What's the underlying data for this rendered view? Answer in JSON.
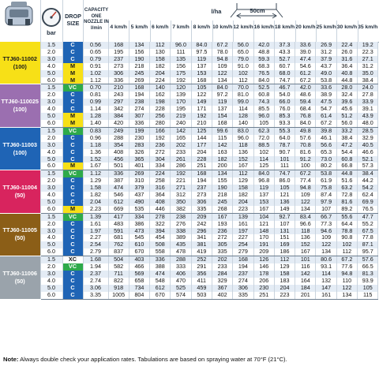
{
  "colors": {
    "VC": "#2eaa4a",
    "C": "#1f64b5",
    "M": "#f7e017",
    "XC": "#ffffff",
    "stripe": "#e4ecf5",
    "header_text": "#1f2d3d"
  },
  "header": {
    "icon_gauge": "pressure-gauge",
    "icon_sprayer": "sprayer-tractor",
    "icon_nozzle": "nozzle",
    "bar_label": "bar",
    "drop_size_label": "DROP SIZE",
    "capacity_label": "CAPACITY ONE NOZZLE IN l/min",
    "lha_label": "l/ha",
    "spacing_label": "50cm",
    "speeds": [
      "4 km/h",
      "5 km/h",
      "6 km/h",
      "7 km/h",
      "8 km/h",
      "10 km/h",
      "12 km/h",
      "16 km/h",
      "18 km/h",
      "20 km/h",
      "25 km/h",
      "30 km/h",
      "35 km/h"
    ]
  },
  "groups": [
    {
      "model": "TTJ60-11002 (100)",
      "color": "#f7e017",
      "text": "#1a1a1a",
      "rows": [
        {
          "bar": "1.5",
          "drop": "C",
          "cap": "0.56",
          "v": [
            "168",
            "134",
            "112",
            "96.0",
            "84.0",
            "67.2",
            "56.0",
            "42.0",
            "37.3",
            "33.6",
            "26.9",
            "22.4",
            "19.2"
          ]
        },
        {
          "bar": "2.0",
          "drop": "C",
          "cap": "0.65",
          "v": [
            "195",
            "156",
            "130",
            "111",
            "97.5",
            "78.0",
            "65.0",
            "48.8",
            "43.3",
            "39.0",
            "31.2",
            "26.0",
            "22.3"
          ]
        },
        {
          "bar": "3.0",
          "drop": "C",
          "cap": "0.79",
          "v": [
            "237",
            "190",
            "158",
            "135",
            "119",
            "94.8",
            "79.0",
            "59.3",
            "52.7",
            "47.4",
            "37.9",
            "31.6",
            "27.1"
          ]
        },
        {
          "bar": "4.0",
          "drop": "M",
          "cap": "0.91",
          "v": [
            "273",
            "218",
            "182",
            "156",
            "137",
            "109",
            "91.0",
            "68.3",
            "60.7",
            "54.6",
            "43.7",
            "36.4",
            "31.2"
          ]
        },
        {
          "bar": "5.0",
          "drop": "M",
          "cap": "1.02",
          "v": [
            "306",
            "245",
            "204",
            "175",
            "153",
            "122",
            "102",
            "76.5",
            "68.0",
            "61.2",
            "49.0",
            "40.8",
            "35.0"
          ]
        },
        {
          "bar": "6.0",
          "drop": "M",
          "cap": "1.12",
          "v": [
            "336",
            "269",
            "224",
            "192",
            "168",
            "134",
            "112",
            "84.0",
            "74.7",
            "67.2",
            "53.8",
            "44.8",
            "38.4"
          ]
        }
      ]
    },
    {
      "model": "TTJ60-110025 (100)",
      "color": "#9b6fb0",
      "text": "#ffffff",
      "rows": [
        {
          "bar": "1.5",
          "drop": "VC",
          "cap": "0.70",
          "v": [
            "210",
            "168",
            "140",
            "120",
            "105",
            "84.0",
            "70.0",
            "52.5",
            "46.7",
            "42.0",
            "33.6",
            "28.0",
            "24.0"
          ]
        },
        {
          "bar": "2.0",
          "drop": "C",
          "cap": "0.81",
          "v": [
            "243",
            "194",
            "162",
            "139",
            "122",
            "97.2",
            "81.0",
            "60.8",
            "54.0",
            "48.6",
            "38.9",
            "32.4",
            "27.8"
          ]
        },
        {
          "bar": "3.0",
          "drop": "C",
          "cap": "0.99",
          "v": [
            "297",
            "238",
            "198",
            "170",
            "149",
            "119",
            "99.0",
            "74.3",
            "66.0",
            "59.4",
            "47.5",
            "39.6",
            "33.9"
          ]
        },
        {
          "bar": "4.0",
          "drop": "C",
          "cap": "1.14",
          "v": [
            "342",
            "274",
            "228",
            "195",
            "171",
            "137",
            "114",
            "85.5",
            "76.0",
            "68.4",
            "54.7",
            "45.6",
            "39.1"
          ]
        },
        {
          "bar": "5.0",
          "drop": "M",
          "cap": "1.28",
          "v": [
            "384",
            "307",
            "256",
            "219",
            "192",
            "154",
            "128",
            "96.0",
            "85.3",
            "76.8",
            "61.4",
            "51.2",
            "43.9"
          ]
        },
        {
          "bar": "6.0",
          "drop": "M",
          "cap": "1.40",
          "v": [
            "420",
            "336",
            "280",
            "240",
            "210",
            "168",
            "140",
            "105",
            "93.3",
            "84.0",
            "67.2",
            "56.0",
            "48.0"
          ]
        }
      ]
    },
    {
      "model": "TTJ60-11003 (100)",
      "color": "#1f64b5",
      "text": "#ffffff",
      "rows": [
        {
          "bar": "1.5",
          "drop": "VC",
          "cap": "0.83",
          "v": [
            "249",
            "199",
            "166",
            "142",
            "125",
            "99.6",
            "83.0",
            "62.3",
            "55.3",
            "49.8",
            "39.8",
            "33.2",
            "28.5"
          ]
        },
        {
          "bar": "2.0",
          "drop": "C",
          "cap": "0.96",
          "v": [
            "288",
            "230",
            "192",
            "165",
            "144",
            "115",
            "96.0",
            "72.0",
            "64.0",
            "57.6",
            "46.1",
            "38.4",
            "32.9"
          ]
        },
        {
          "bar": "3.0",
          "drop": "C",
          "cap": "1.18",
          "v": [
            "354",
            "283",
            "236",
            "202",
            "177",
            "142",
            "118",
            "88.5",
            "78.7",
            "70.8",
            "56.6",
            "47.2",
            "40.5"
          ]
        },
        {
          "bar": "4.0",
          "drop": "C",
          "cap": "1.36",
          "v": [
            "408",
            "326",
            "272",
            "233",
            "204",
            "163",
            "136",
            "102",
            "90.7",
            "81.6",
            "65.3",
            "54.4",
            "46.6"
          ]
        },
        {
          "bar": "5.0",
          "drop": "C",
          "cap": "1.52",
          "v": [
            "456",
            "365",
            "304",
            "261",
            "228",
            "182",
            "152",
            "114",
            "101",
            "91.2",
            "73.0",
            "60.8",
            "52.1"
          ]
        },
        {
          "bar": "6.0",
          "drop": "M",
          "cap": "1.67",
          "v": [
            "501",
            "401",
            "334",
            "286",
            "251",
            "200",
            "167",
            "125",
            "111",
            "100",
            "80.2",
            "66.8",
            "57.3"
          ]
        }
      ]
    },
    {
      "model": "TTJ60-11004 (50)",
      "color": "#d8245e",
      "text": "#ffffff",
      "rows": [
        {
          "bar": "1.5",
          "drop": "VC",
          "cap": "1.12",
          "v": [
            "336",
            "269",
            "224",
            "192",
            "168",
            "134",
            "112",
            "84.0",
            "74.7",
            "67.2",
            "53.8",
            "44.8",
            "38.4"
          ]
        },
        {
          "bar": "2.0",
          "drop": "C",
          "cap": "1.29",
          "v": [
            "387",
            "310",
            "258",
            "221",
            "194",
            "155",
            "129",
            "96.8",
            "86.0",
            "77.4",
            "61.9",
            "51.6",
            "44.2"
          ]
        },
        {
          "bar": "3.0",
          "drop": "C",
          "cap": "1.58",
          "v": [
            "474",
            "379",
            "316",
            "271",
            "237",
            "190",
            "158",
            "119",
            "105",
            "94.8",
            "75.8",
            "63.2",
            "54.2"
          ]
        },
        {
          "bar": "4.0",
          "drop": "C",
          "cap": "1.82",
          "v": [
            "546",
            "437",
            "364",
            "312",
            "273",
            "218",
            "182",
            "137",
            "121",
            "109",
            "87.4",
            "72.8",
            "62.4"
          ]
        },
        {
          "bar": "5.0",
          "drop": "C",
          "cap": "2.04",
          "v": [
            "612",
            "490",
            "408",
            "350",
            "306",
            "245",
            "204",
            "153",
            "136",
            "122",
            "97.9",
            "81.6",
            "69.9"
          ]
        },
        {
          "bar": "6.0",
          "drop": "M",
          "cap": "2.23",
          "v": [
            "669",
            "535",
            "446",
            "382",
            "335",
            "268",
            "223",
            "167",
            "149",
            "134",
            "107",
            "89.2",
            "76.5"
          ]
        }
      ]
    },
    {
      "model": "TTJ60-11005 (50)",
      "color": "#8b5e17",
      "text": "#ffffff",
      "rows": [
        {
          "bar": "1.5",
          "drop": "VC",
          "cap": "1.39",
          "v": [
            "417",
            "334",
            "278",
            "238",
            "209",
            "167",
            "139",
            "104",
            "92.7",
            "83.4",
            "66.7",
            "55.6",
            "47.7"
          ]
        },
        {
          "bar": "2.0",
          "drop": "C",
          "cap": "1.61",
          "v": [
            "483",
            "386",
            "322",
            "276",
            "242",
            "193",
            "161",
            "121",
            "107",
            "96.6",
            "77.3",
            "64.4",
            "55.2"
          ]
        },
        {
          "bar": "3.0",
          "drop": "C",
          "cap": "1.97",
          "v": [
            "591",
            "473",
            "394",
            "338",
            "296",
            "236",
            "197",
            "148",
            "131",
            "118",
            "94.6",
            "78.8",
            "67.5"
          ]
        },
        {
          "bar": "4.0",
          "drop": "C",
          "cap": "2.27",
          "v": [
            "681",
            "545",
            "454",
            "389",
            "341",
            "272",
            "227",
            "170",
            "151",
            "136",
            "109",
            "90.8",
            "77.8"
          ]
        },
        {
          "bar": "5.0",
          "drop": "C",
          "cap": "2.54",
          "v": [
            "762",
            "610",
            "508",
            "435",
            "381",
            "305",
            "254",
            "191",
            "169",
            "152",
            "122",
            "102",
            "87.1"
          ]
        },
        {
          "bar": "6.0",
          "drop": "C",
          "cap": "2.79",
          "v": [
            "837",
            "670",
            "558",
            "478",
            "419",
            "335",
            "279",
            "209",
            "186",
            "167",
            "134",
            "112",
            "95.7"
          ]
        }
      ]
    },
    {
      "model": "TTJ60-11006 (50)",
      "color": "#9aa3ab",
      "text": "#ffffff",
      "rows": [
        {
          "bar": "1.5",
          "drop": "XC",
          "cap": "1.68",
          "v": [
            "504",
            "403",
            "336",
            "288",
            "252",
            "202",
            "168",
            "126",
            "112",
            "101",
            "80.6",
            "67.2",
            "57.6"
          ]
        },
        {
          "bar": "2.0",
          "drop": "VC",
          "cap": "1.94",
          "v": [
            "582",
            "466",
            "388",
            "333",
            "291",
            "233",
            "194",
            "146",
            "129",
            "116",
            "93.1",
            "77.6",
            "66.5"
          ]
        },
        {
          "bar": "3.0",
          "drop": "C",
          "cap": "2.37",
          "v": [
            "711",
            "569",
            "474",
            "406",
            "356",
            "284",
            "237",
            "178",
            "158",
            "142",
            "114",
            "94.8",
            "81.3"
          ]
        },
        {
          "bar": "4.0",
          "drop": "C",
          "cap": "2.74",
          "v": [
            "822",
            "658",
            "548",
            "470",
            "411",
            "329",
            "274",
            "206",
            "183",
            "164",
            "132",
            "110",
            "93.9"
          ]
        },
        {
          "bar": "5.0",
          "drop": "C",
          "cap": "3.06",
          "v": [
            "918",
            "734",
            "612",
            "525",
            "459",
            "367",
            "306",
            "230",
            "204",
            "184",
            "147",
            "122",
            "105"
          ]
        },
        {
          "bar": "6.0",
          "drop": "C",
          "cap": "3.35",
          "v": [
            "1005",
            "804",
            "670",
            "574",
            "503",
            "402",
            "335",
            "251",
            "223",
            "201",
            "161",
            "134",
            "115"
          ]
        }
      ]
    }
  ],
  "note": {
    "bold": "Note:",
    "text": " Always double check your application rates. Tabulations are based on spraying water at 70°F (21°C)."
  }
}
